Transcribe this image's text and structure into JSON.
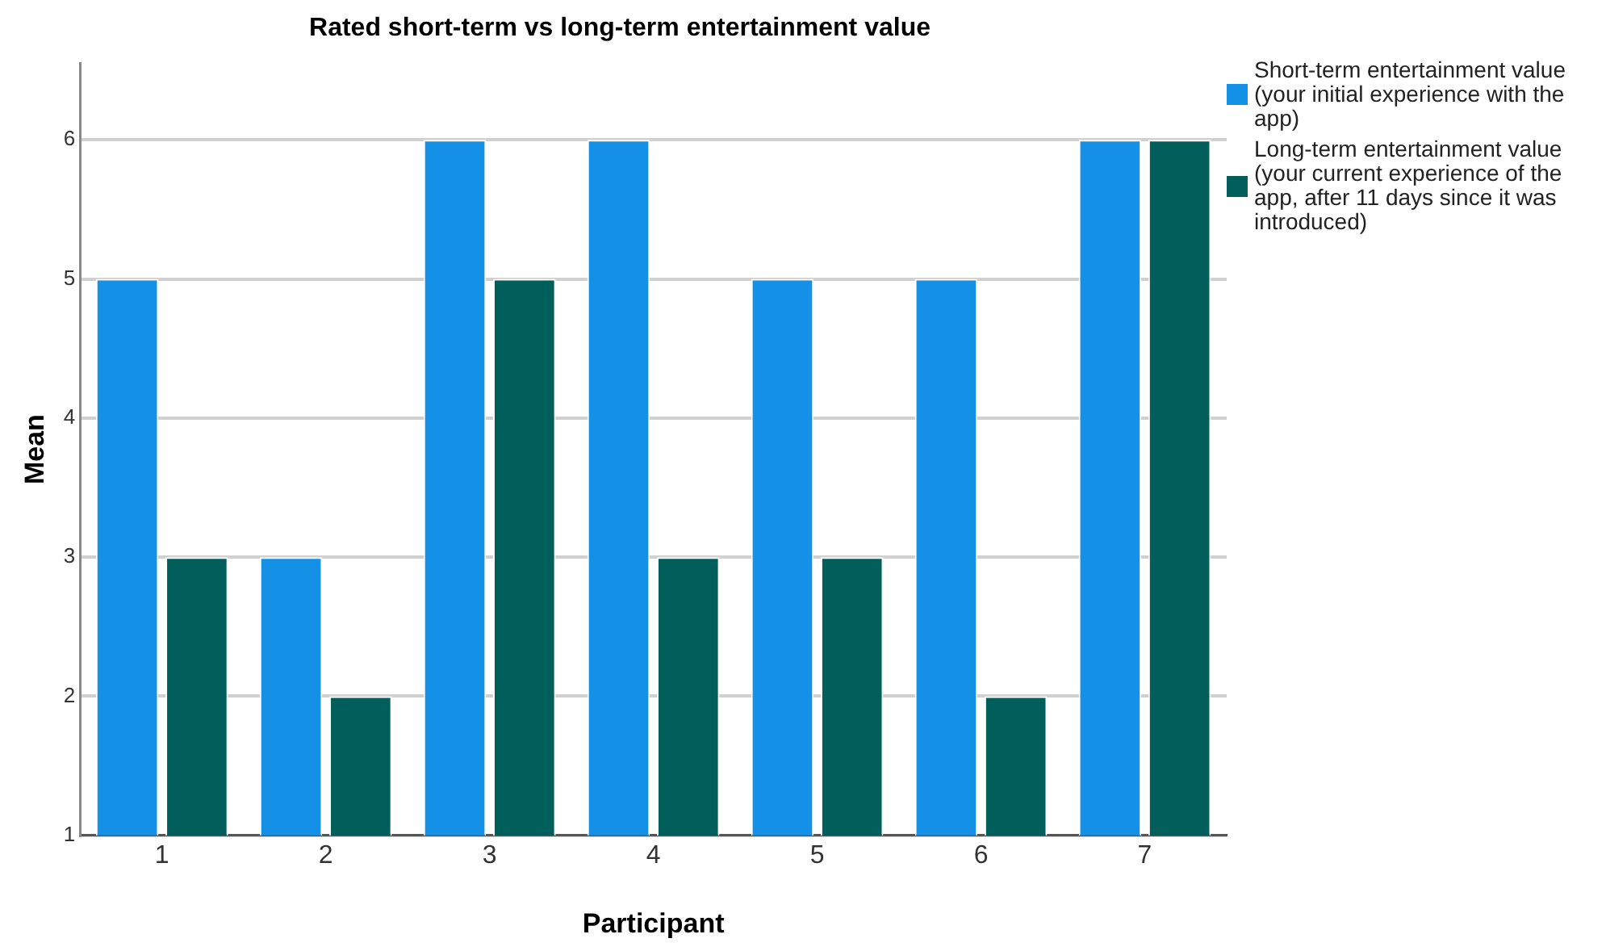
{
  "chart_data": {
    "type": "bar",
    "title": "Rated short-term vs long-term entertainment value",
    "xlabel": "Participant",
    "ylabel": "Mean",
    "categories": [
      "1",
      "2",
      "3",
      "4",
      "5",
      "6",
      "7"
    ],
    "series": [
      {
        "name": "Short-term entertainment value (your initial experience with the app)",
        "color": "#1490e6",
        "values": [
          5,
          3,
          6,
          6,
          5,
          5,
          6
        ]
      },
      {
        "name": "Long-term entertainment value (your current experience of the app, after 11 days since it was introduced)",
        "color": "#005e5b",
        "values": [
          3,
          2,
          5,
          3,
          3,
          2,
          6
        ]
      }
    ],
    "ylim": [
      1,
      6.55
    ],
    "yticks": [
      1,
      2,
      3,
      4,
      5,
      6
    ],
    "grid": "y",
    "legend": "right"
  }
}
